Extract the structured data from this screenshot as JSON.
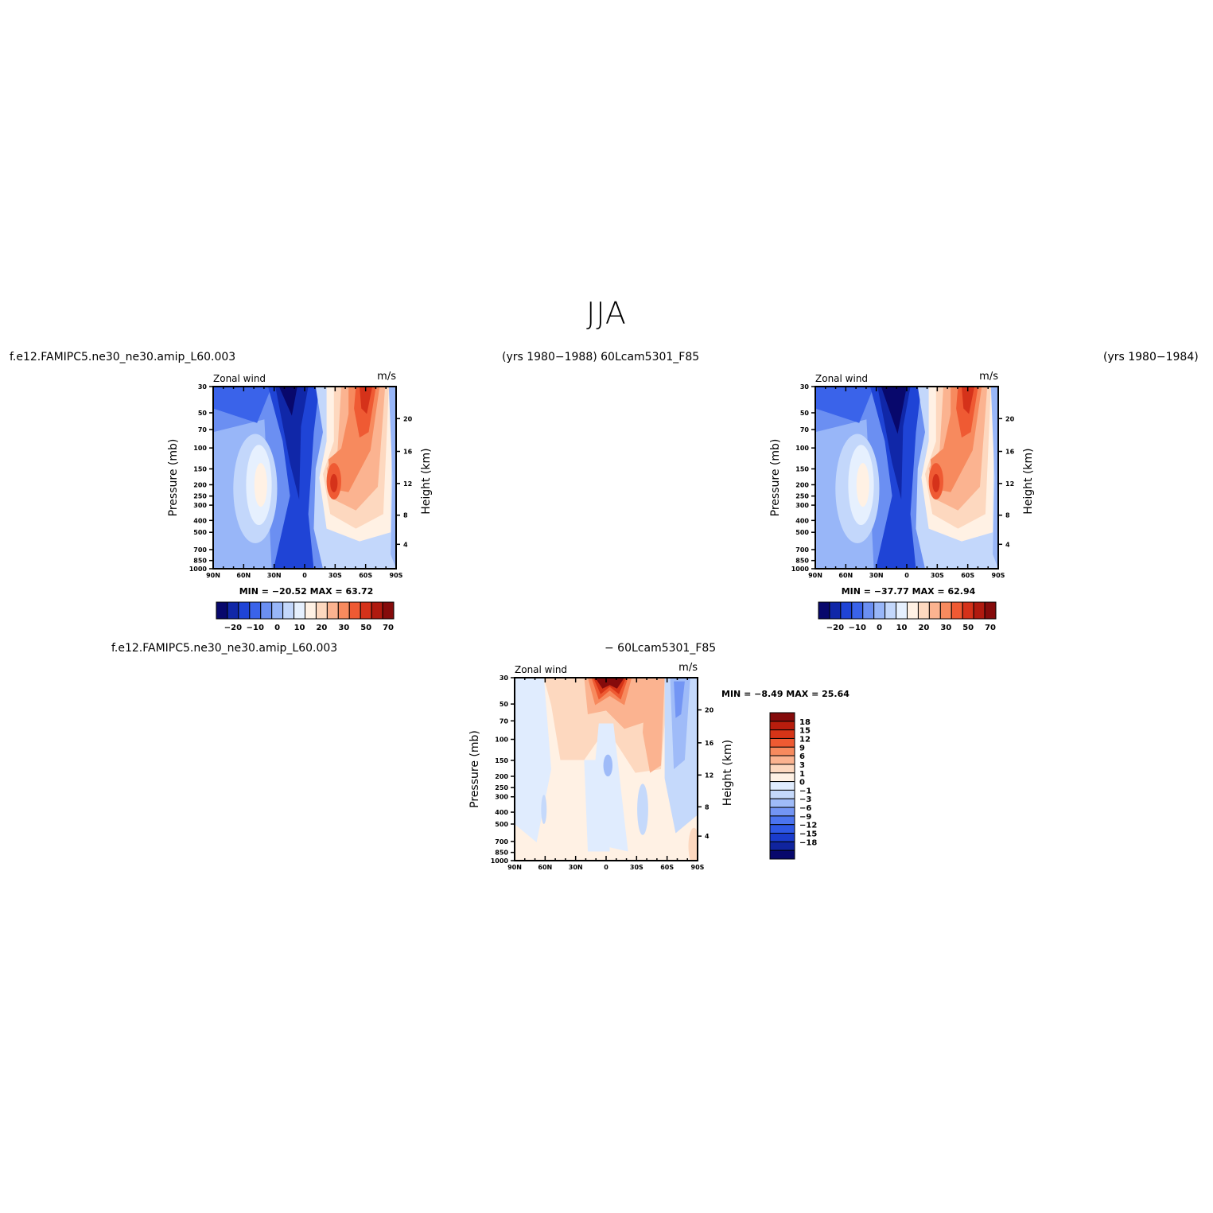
{
  "main_title": "JJA",
  "headers": {
    "case1_name": "f.e12.FAMIPC5.ne30_ne30.amip_L60.003",
    "case1_years_and_case2_name": "(yrs 1980−1988)  60Lcam5301_F85",
    "case2_years": "(yrs 1980−1984)",
    "diff_left": "f.e12.FAMIPC5.ne30_ne30.amip_L60.003",
    "diff_right": "−  60Lcam5301_F85"
  },
  "panel_labels": {
    "variable": "Zonal wind",
    "units": "m/s",
    "ylabel_left": "Pressure (mb)",
    "ylabel_right": "Height (km)"
  },
  "colors": {
    "abs_scale": [
      "#08086c",
      "#1027a8",
      "#1f44d6",
      "#3a63ea",
      "#6b8ff2",
      "#98b6f8",
      "#c3d7fb",
      "#e6f0fe",
      "#fff1e4",
      "#fdd8bf",
      "#fbb390",
      "#f78a5e",
      "#ef5a33",
      "#d5321a",
      "#b01a0f",
      "#850b0b"
    ],
    "diff_scale": [
      "#08086c",
      "#10249e",
      "#1a3ccd",
      "#2e58e6",
      "#4b74f0",
      "#7395f4",
      "#9fbbf8",
      "#c5d9fb",
      "#e0ecfe",
      "#fff1e4",
      "#fdd8bf",
      "#fbb390",
      "#f78a5e",
      "#ee5a32",
      "#d63417",
      "#b81d0d",
      "#850b0b"
    ]
  },
  "chart_data": [
    {
      "type": "heatmap",
      "panel": "case1",
      "title": "Zonal wind",
      "units": "m/s",
      "xlabel": "",
      "ylabel": "Pressure (mb)",
      "ylabel_right": "Height (km)",
      "x_ticks": [
        "90N",
        "60N",
        "30N",
        "0",
        "30S",
        "60S",
        "90S"
      ],
      "y_ticks": [
        "30",
        "50",
        "70",
        "100",
        "150",
        "200",
        "250",
        "300",
        "400",
        "500",
        "700",
        "850",
        "1000"
      ],
      "y_ticks_right": [
        "4",
        "8",
        "12",
        "16",
        "20"
      ],
      "ylim": [
        1000,
        30
      ],
      "stats": "MIN =  −20.52   MAX =   63.72",
      "colorbar_labels": [
        "−20",
        "−10",
        "0",
        "10",
        "20",
        "30",
        "50",
        "70"
      ],
      "features": [
        {
          "lat": -45,
          "p": 120,
          "value": 45
        },
        {
          "lat": -70,
          "p": 40,
          "value": 60
        },
        {
          "lat": -30,
          "p": 200,
          "value": 40
        },
        {
          "lat": 45,
          "p": 200,
          "value": 5
        },
        {
          "lat": 15,
          "p": 30,
          "value": -20
        }
      ]
    },
    {
      "type": "heatmap",
      "panel": "case2",
      "title": "Zonal wind",
      "units": "m/s",
      "xlabel": "",
      "ylabel": "Pressure (mb)",
      "ylabel_right": "Height (km)",
      "x_ticks": [
        "90N",
        "60N",
        "30N",
        "0",
        "30S",
        "60S",
        "90S"
      ],
      "y_ticks": [
        "30",
        "50",
        "70",
        "100",
        "150",
        "200",
        "250",
        "300",
        "400",
        "500",
        "700",
        "850",
        "1000"
      ],
      "y_ticks_right": [
        "4",
        "8",
        "12",
        "16",
        "20"
      ],
      "ylim": [
        1000,
        30
      ],
      "stats": "MIN =  −37.77   MAX =   62.94",
      "colorbar_labels": [
        "−20",
        "−10",
        "0",
        "10",
        "20",
        "30",
        "50",
        "70"
      ],
      "features": [
        {
          "lat": -45,
          "p": 120,
          "value": 45
        },
        {
          "lat": -70,
          "p": 40,
          "value": 60
        },
        {
          "lat": -30,
          "p": 200,
          "value": 40
        },
        {
          "lat": 45,
          "p": 200,
          "value": 5
        },
        {
          "lat": 15,
          "p": 30,
          "value": -37
        }
      ]
    },
    {
      "type": "heatmap",
      "panel": "difference",
      "title": "Zonal wind",
      "units": "m/s",
      "xlabel": "",
      "ylabel": "Pressure (mb)",
      "ylabel_right": "Height (km)",
      "x_ticks": [
        "90N",
        "60N",
        "30N",
        "0",
        "30S",
        "60S",
        "90S"
      ],
      "y_ticks": [
        "30",
        "50",
        "70",
        "100",
        "150",
        "200",
        "250",
        "300",
        "400",
        "500",
        "700",
        "850",
        "1000"
      ],
      "y_ticks_right": [
        "4",
        "8",
        "12",
        "16",
        "20"
      ],
      "ylim": [
        1000,
        30
      ],
      "stats": "MIN =   −8.49   MAX =   25.64",
      "colorbar_labels": [
        "18",
        "15",
        "12",
        "9",
        "6",
        "3",
        "1",
        "0",
        "−1",
        "−3",
        "−6",
        "−9",
        "−12",
        "−15",
        "−18"
      ],
      "features": [
        {
          "lat": 0,
          "p": 30,
          "value": 25
        },
        {
          "lat": -50,
          "p": 40,
          "value": 6
        },
        {
          "lat": -75,
          "p": 70,
          "value": -6
        },
        {
          "lat": 0,
          "p": 150,
          "value": -1
        }
      ]
    }
  ]
}
